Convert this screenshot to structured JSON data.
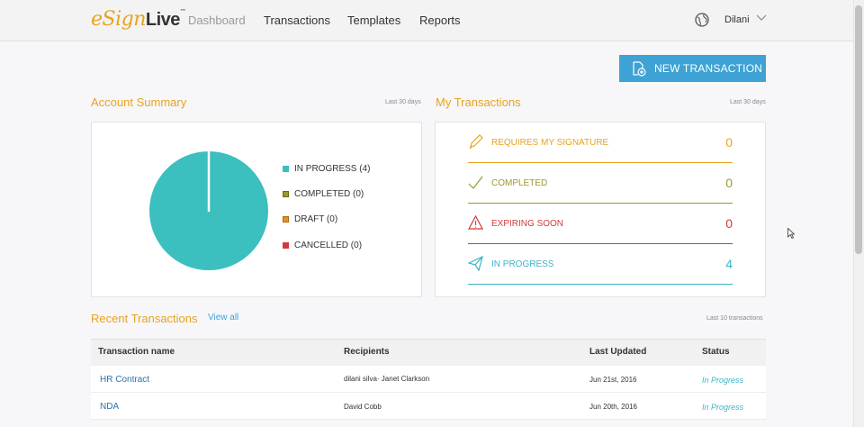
{
  "header": {
    "logo_part1": "eSign",
    "logo_part2": "Live",
    "logo_tm": "™",
    "nav": [
      "Dashboard",
      "Transactions",
      "Templates",
      "Reports"
    ],
    "active_nav": "Dashboard",
    "user_name": "Dilani",
    "icons": {
      "language": "globe-icon",
      "user_menu": "chevron-down-icon"
    }
  },
  "actions": {
    "new_transaction": "NEW TRANSACTION",
    "new_transaction_icon": "document-plus-icon"
  },
  "account_summary": {
    "title": "Account Summary",
    "period": "Last 30 days",
    "legend": [
      {
        "label": "IN PROGRESS (4)",
        "color": "#3bbfbf",
        "value": 4
      },
      {
        "label": "COMPLETED (0)",
        "color": "#9a9a2a",
        "value": 0
      },
      {
        "label": "DRAFT (0)",
        "color": "#e8901e",
        "value": 0
      },
      {
        "label": "CANCELLED (0)",
        "color": "#d03a3a",
        "value": 0
      }
    ]
  },
  "my_transactions": {
    "title": "My Transactions",
    "period": "Last 30 days",
    "rows": [
      {
        "label": "REQUIRES MY SIGNATURE",
        "value": "0",
        "color": "#e8a31e",
        "icon": "pen-icon"
      },
      {
        "label": "COMPLETED",
        "value": "0",
        "color": "#9a9a2a",
        "icon": "checkmark-icon"
      },
      {
        "label": "EXPIRING SOON",
        "value": "0",
        "color": "#d03a3a",
        "icon": "warning-icon"
      },
      {
        "label": "IN PROGRESS",
        "value": "4",
        "color": "#3bb5c9",
        "icon": "paper-plane-icon"
      }
    ]
  },
  "recent": {
    "title": "Recent Transactions",
    "view_all": "View all",
    "note": "Last 10 transactions",
    "columns": [
      "Transaction name",
      "Recipients",
      "Last Updated",
      "Status"
    ],
    "rows": [
      {
        "name": "HR Contract",
        "recipients": "dilani silva· Janet Clarkson",
        "updated": "Jun 21st, 2016",
        "status": "In Progress"
      },
      {
        "name": "NDA",
        "recipients": "David Cobb",
        "updated": "Jun 20th, 2016",
        "status": "In Progress"
      }
    ]
  },
  "colors": {
    "accent": "#e8a31e",
    "button": "#3ea2d4",
    "link": "#2d73a8"
  }
}
